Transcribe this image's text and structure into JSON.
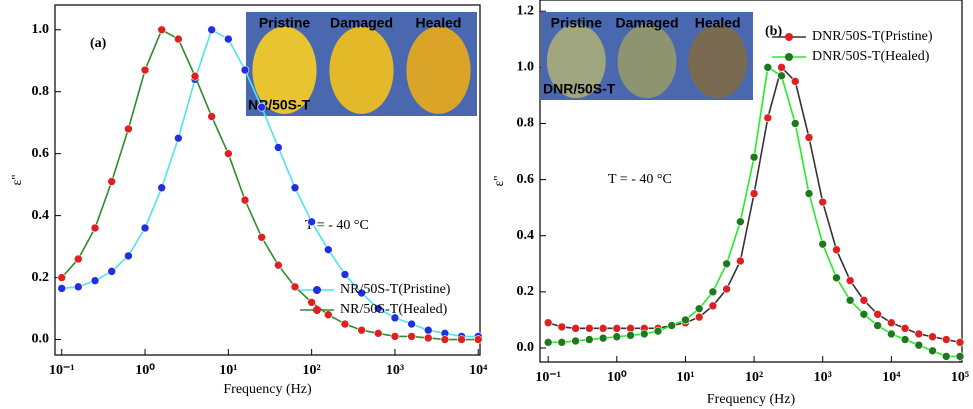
{
  "chart_data": [
    {
      "type": "line",
      "xlabel": "Frequency (Hz)",
      "ylabel": "ε''",
      "log_x": true,
      "legend": "center right",
      "annotations": [
        "(a)",
        "T = - 40 °C"
      ],
      "inset": {
        "labels": [
          "Pristine",
          "Damaged",
          "Healed"
        ],
        "caption": "NR/50S-T"
      },
      "xlim": [
        0.083,
        10500
      ],
      "ylim": [
        -0.05,
        1.08
      ],
      "xticks": [
        {
          "value": 0.1,
          "label": "10⁻¹"
        },
        {
          "value": 1,
          "label": "10⁰"
        },
        {
          "value": 10,
          "label": "10¹"
        },
        {
          "value": 100,
          "label": "10²"
        },
        {
          "value": 1000,
          "label": "10³"
        },
        {
          "value": 10000,
          "label": "10⁴"
        }
      ],
      "yticks": [
        {
          "value": 0,
          "label": "0.0"
        },
        0.2,
        0.4,
        0.6,
        0.8,
        {
          "value": 1,
          "label": "1.0"
        }
      ],
      "x": [
        0.1,
        0.158,
        0.251,
        0.398,
        0.631,
        1,
        1.585,
        2.512,
        3.981,
        6.31,
        10,
        15.85,
        25.12,
        39.81,
        63.1,
        100,
        158.5,
        251.2,
        398.1,
        631,
        1000,
        1585,
        2512,
        3981,
        6310,
        10000
      ],
      "series": [
        {
          "name": "NR/50S-T(Pristine)",
          "color": "#4fe3f0",
          "marker_color": "#2030e0",
          "values": [
            0.165,
            0.17,
            0.19,
            0.22,
            0.27,
            0.36,
            0.49,
            0.65,
            0.84,
            1.0,
            0.97,
            0.87,
            0.75,
            0.62,
            0.49,
            0.38,
            0.29,
            0.21,
            0.15,
            0.1,
            0.07,
            0.05,
            0.03,
            0.02,
            0.01,
            0.01
          ]
        },
        {
          "name": "NR/50S-T(Healed)",
          "color": "#2e8b2e",
          "marker_color": "#e02020",
          "values": [
            0.2,
            0.26,
            0.36,
            0.51,
            0.68,
            0.87,
            1.0,
            0.97,
            0.85,
            0.72,
            0.6,
            0.45,
            0.33,
            0.24,
            0.17,
            0.12,
            0.08,
            0.05,
            0.03,
            0.02,
            0.01,
            0.01,
            0.005,
            0,
            0,
            0
          ]
        }
      ]
    },
    {
      "type": "line",
      "xlabel": "Frequency (Hz)",
      "ylabel": "ε''",
      "log_x": true,
      "legend": "upper right",
      "annotations": [
        "(b)",
        "T = - 40 °C"
      ],
      "inset": {
        "labels": [
          "Pristine",
          "Damaged",
          "Healed"
        ],
        "caption": "DNR/50S-T"
      },
      "xlim": [
        0.076,
        107000
      ],
      "ylim": [
        -0.05,
        1.24
      ],
      "xticks": [
        {
          "value": 0.1,
          "label": "10⁻¹"
        },
        {
          "value": 1,
          "label": "10⁰"
        },
        {
          "value": 10,
          "label": "10¹"
        },
        {
          "value": 100,
          "label": "10²"
        },
        {
          "value": 1000,
          "label": "10³"
        },
        {
          "value": 10000,
          "label": "10⁴"
        },
        {
          "value": 100000,
          "label": "10⁵"
        }
      ],
      "yticks": [
        {
          "value": 0,
          "label": "0.0"
        },
        0.2,
        0.4,
        0.6,
        0.8,
        {
          "value": 1,
          "label": "1.0"
        },
        1.2
      ],
      "x": [
        0.1,
        0.158,
        0.251,
        0.398,
        0.631,
        1,
        1.585,
        2.512,
        3.981,
        6.31,
        10,
        15.85,
        25.12,
        39.81,
        63.1,
        100,
        158.5,
        251.2,
        398.1,
        631,
        1000,
        1585,
        2512,
        3981,
        6310,
        10000,
        15850,
        25120,
        39810,
        63100,
        100000
      ],
      "series": [
        {
          "name": "DNR/50S-T(Pristine)",
          "color": "#333333",
          "marker_color": "#e02020",
          "values": [
            0.09,
            0.075,
            0.07,
            0.07,
            0.07,
            0.07,
            0.07,
            0.07,
            0.07,
            0.08,
            0.09,
            0.11,
            0.15,
            0.21,
            0.31,
            0.55,
            0.82,
            1.0,
            0.95,
            0.75,
            0.52,
            0.35,
            0.24,
            0.17,
            0.12,
            0.09,
            0.07,
            0.05,
            0.04,
            0.03,
            0.02
          ]
        },
        {
          "name": "DNR/50S-T(Healed)",
          "color": "#22ee22",
          "marker_color": "#1c7a1c",
          "values": [
            0.02,
            0.02,
            0.025,
            0.03,
            0.035,
            0.04,
            0.045,
            0.05,
            0.06,
            0.08,
            0.1,
            0.14,
            0.2,
            0.3,
            0.45,
            0.68,
            1.0,
            0.97,
            0.8,
            0.55,
            0.37,
            0.25,
            0.17,
            0.12,
            0.08,
            0.05,
            0.03,
            0.01,
            -0.01,
            -0.03,
            -0.03
          ]
        }
      ]
    }
  ]
}
